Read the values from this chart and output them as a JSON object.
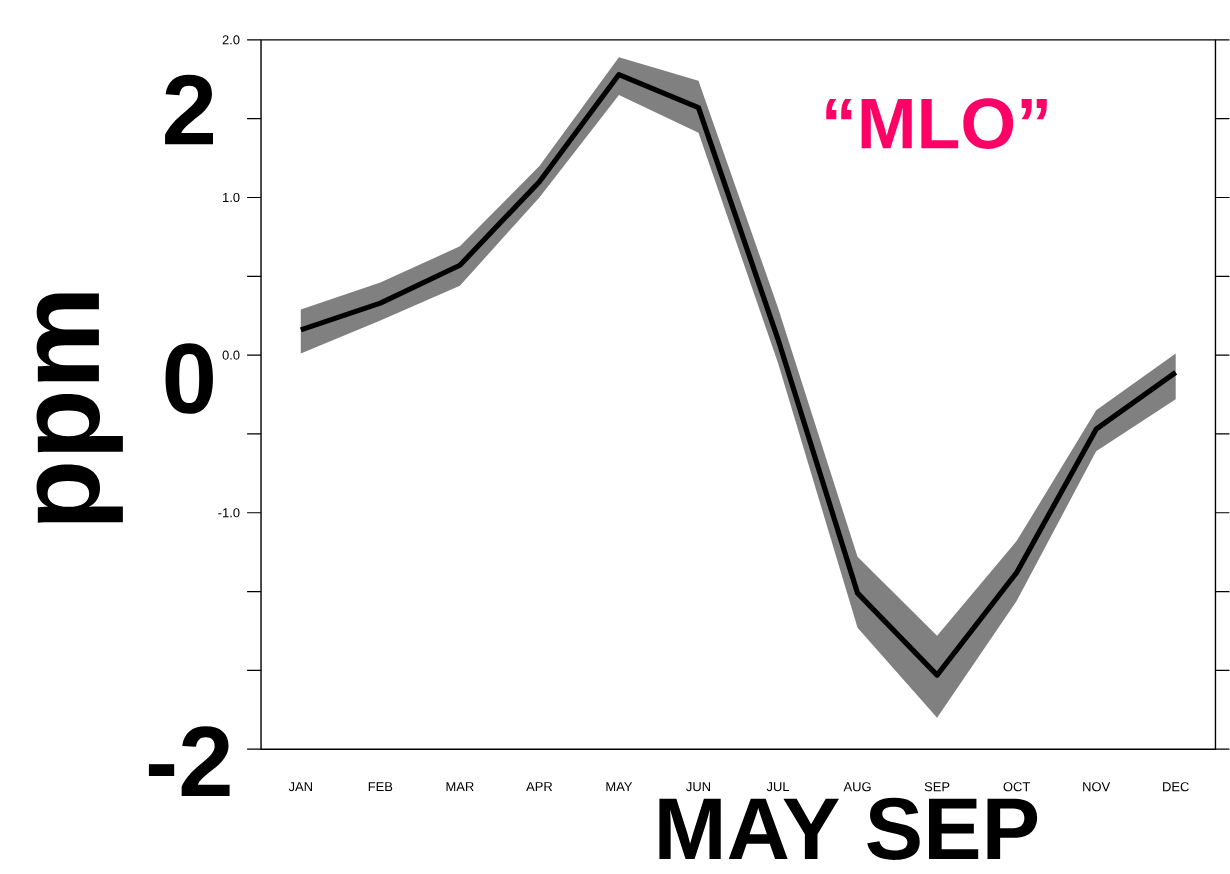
{
  "chart_data": {
    "type": "line",
    "ylabel": "ppm",
    "categories": [
      "JAN",
      "FEB",
      "MAR",
      "APR",
      "MAY",
      "JUN",
      "JUL",
      "AUG",
      "SEP",
      "OCT",
      "NOV",
      "DEC"
    ],
    "series": [
      {
        "color": "#000000",
        "values": [
          0.16,
          0.33,
          0.57,
          1.1,
          1.78,
          1.57,
          0.1,
          -1.51,
          -2.03,
          -1.38,
          -0.47,
          -0.11
        ],
        "lower": [
          0.01,
          0.22,
          0.44,
          1.0,
          1.65,
          1.41,
          -0.05,
          -1.73,
          -2.3,
          -1.56,
          -0.61,
          -0.28
        ],
        "upper": [
          0.29,
          0.46,
          0.69,
          1.2,
          1.89,
          1.74,
          0.3,
          -1.28,
          -1.78,
          -1.18,
          -0.35,
          0.01
        ]
      }
    ],
    "ylim": [
      -2.5,
      2.0
    ],
    "yticks": [
      {
        "value": -2.5,
        "label": null
      },
      {
        "value": -2.0,
        "label": null
      },
      {
        "value": -1.5,
        "label": null
      },
      {
        "value": -1.0,
        "label": "-1.0"
      },
      {
        "value": -0.5,
        "label": null
      },
      {
        "value": 0.0,
        "label": "0.0"
      },
      {
        "value": 0.5,
        "label": null
      },
      {
        "value": 1.0,
        "label": "1.0"
      },
      {
        "value": 1.5,
        "label": null
      },
      {
        "value": 2.0,
        "label": "2.0"
      }
    ],
    "annotations": [
      "2",
      "0",
      "-2",
      "“MLO”",
      "MAY SEP"
    ],
    "line_style": "solid",
    "marker": "none"
  }
}
